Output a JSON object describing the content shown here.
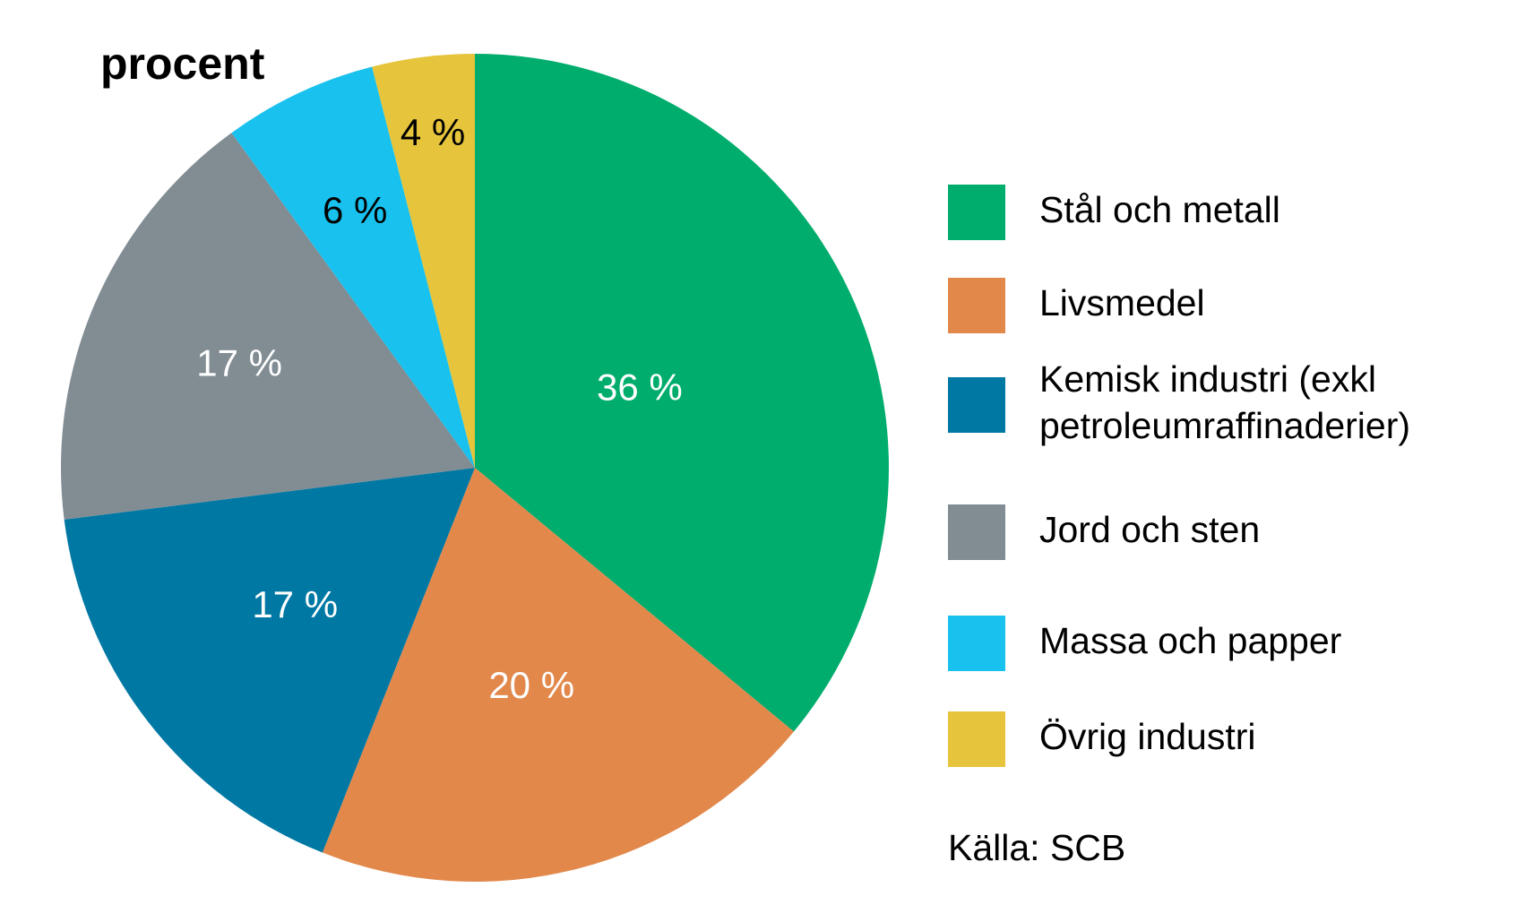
{
  "chart_data": {
    "type": "pie",
    "title": "procent",
    "categories": [
      "Stål och metall",
      "Livsmedel",
      "Kemisk industri (exkl petroleumraffinaderier)",
      "Jord och sten",
      "Massa och papper",
      "Övrig industri"
    ],
    "legend_lines": [
      [
        "Stål och metall"
      ],
      [
        "Livsmedel"
      ],
      [
        "Kemisk industri (exkl",
        "petroleumraffinaderier)"
      ],
      [
        "Jord och sten"
      ],
      [
        "Massa och papper"
      ],
      [
        "Övrig industri"
      ]
    ],
    "values": [
      36,
      20,
      17,
      17,
      6,
      4
    ],
    "data_labels": [
      "36 %",
      "20 %",
      "17 %",
      "17 %",
      "6 %",
      "4 %"
    ],
    "colors": [
      "#00ad6c",
      "#e2884b",
      "#0078a4",
      "#818c93",
      "#19c1ee",
      "#e6c43b"
    ],
    "label_colors": [
      "#ffffff",
      "#ffffff",
      "#ffffff",
      "#ffffff",
      "#000000",
      "#000000"
    ],
    "start_angle": "12 o'clock",
    "direction": "clockwise",
    "legend_position": "right",
    "source": "Källa: SCB"
  }
}
